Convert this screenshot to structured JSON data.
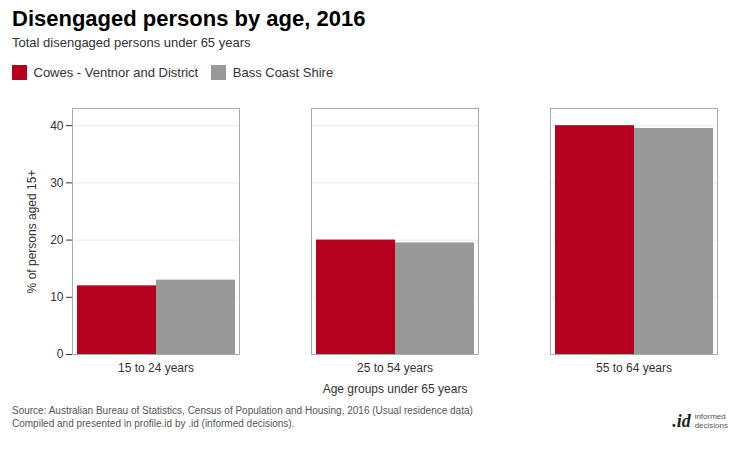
{
  "chart_data": {
    "type": "bar",
    "title": "Disengaged persons by age, 2016",
    "subtitle": "Total disengaged persons under 65 years",
    "categories": [
      "15 to 24 years",
      "25 to 54 years",
      "55 to 64 years"
    ],
    "series": [
      {
        "name": "Cowes - Ventnor and District",
        "color": "#b5001e",
        "values": [
          12.0,
          20.0,
          40.0
        ]
      },
      {
        "name": "Bass Coast Shire",
        "color": "#999999",
        "values": [
          13.0,
          19.5,
          39.5
        ]
      }
    ],
    "xlabel": "Age groups under 65 years",
    "ylabel": "% of persons aged 15+",
    "ylim": [
      0,
      43
    ],
    "yticks": [
      0,
      10,
      20,
      30,
      40
    ],
    "grid": true,
    "legend": "upper left",
    "source": "Source: Australian Bureau of Statistics, Census of Population and Housing, 2016 (Usual residence data)\nCompiled and presented in profile.id by .id (informed decisions).",
    "annotations": [
      ".id",
      "informed\ndecisions"
    ]
  }
}
